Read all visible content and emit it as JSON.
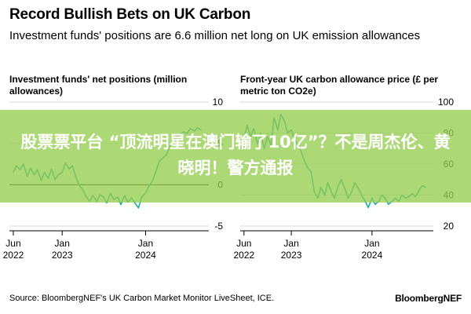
{
  "header": {
    "title": "Record Bullish Bets on UK Carbon",
    "subtitle": "Investment funds' positions are 6.6 million net long on UK emission allowances"
  },
  "footer": {
    "source": "Source: BloombergNEF's UK Carbon Market Monitor LiveSheet, ICE.",
    "logo": "BloombergNEF"
  },
  "overlay": {
    "text": "股票票平台 “顶流明星在澳门输了10亿”？不是周杰伦、黄晓明！警方通报"
  },
  "colors": {
    "series": "#19a8a8",
    "overlay": "#96cd50",
    "grid": "#d9d9d9"
  },
  "chart_data": [
    {
      "type": "line",
      "title": "Investment funds' net positions (million allowances)",
      "y_axis_side": "right",
      "ylim": [
        -5,
        10
      ],
      "yticks": [
        10,
        5,
        0,
        -5
      ],
      "zero_line": true,
      "xlim": [
        "2022-05-15",
        "2024-09-20"
      ],
      "xticks": [
        {
          "x": "2022-06-01",
          "label": [
            "Jun",
            "2022"
          ]
        },
        {
          "x": "2023-01-01",
          "label": [
            "Jan",
            "2023"
          ]
        },
        {
          "x": "2024-01-01",
          "label": [
            "Jan",
            "2024"
          ]
        }
      ],
      "series": [
        {
          "x": [
            "2022-06-01",
            "2022-06-15",
            "2022-07-01",
            "2022-07-15",
            "2022-08-01",
            "2022-08-15",
            "2022-09-01",
            "2022-09-15",
            "2022-10-01",
            "2022-10-15",
            "2022-11-01",
            "2022-11-15",
            "2022-12-01",
            "2022-12-15",
            "2023-01-01",
            "2023-01-15",
            "2023-02-01",
            "2023-02-15",
            "2023-03-01",
            "2023-03-15",
            "2023-04-01",
            "2023-04-15",
            "2023-05-01",
            "2023-05-15",
            "2023-06-01",
            "2023-06-15",
            "2023-07-01",
            "2023-07-15",
            "2023-08-01",
            "2023-08-15",
            "2023-09-01",
            "2023-09-15",
            "2023-10-01",
            "2023-10-15",
            "2023-11-01",
            "2023-11-15",
            "2023-12-01",
            "2023-12-15",
            "2024-01-01",
            "2024-01-15",
            "2024-02-01",
            "2024-02-15",
            "2024-03-01",
            "2024-03-15",
            "2024-04-01",
            "2024-04-15",
            "2024-05-01",
            "2024-05-15",
            "2024-06-01",
            "2024-06-15",
            "2024-07-01",
            "2024-07-15",
            "2024-08-01",
            "2024-08-15",
            "2024-09-01"
          ],
          "values": [
            1.5,
            2.3,
            1.8,
            2.5,
            1.0,
            2.0,
            1.2,
            1.8,
            0.5,
            1.5,
            0.8,
            1.9,
            0.6,
            1.2,
            1.5,
            2.6,
            1.9,
            2.3,
            1.0,
            0.0,
            -0.6,
            -1.4,
            -2.0,
            -1.3,
            -2.0,
            -1.2,
            -1.5,
            -2.2,
            -1.0,
            -1.8,
            -1.5,
            -2.4,
            -1.3,
            -2.1,
            -1.6,
            -2.2,
            -2.8,
            -1.5,
            -1.0,
            -0.2,
            0.5,
            1.6,
            2.8,
            3.2,
            3.6,
            4.6,
            5.2,
            5.8,
            6.1,
            6.4,
            6.2,
            6.8,
            6.5,
            6.9,
            6.6
          ]
        }
      ]
    },
    {
      "type": "line",
      "title": "Front-year UK carbon allowance price (£ per metric ton CO2e)",
      "y_axis_side": "right",
      "ylim": [
        20,
        100
      ],
      "yticks": [
        100,
        80,
        60,
        40,
        20
      ],
      "zero_line": false,
      "xlim": [
        "2022-05-15",
        "2024-09-20"
      ],
      "xticks": [
        {
          "x": "2022-06-01",
          "label": [
            "Jun",
            "2022"
          ]
        },
        {
          "x": "2023-01-01",
          "label": [
            "Jan",
            "2023"
          ]
        },
        {
          "x": "2024-01-01",
          "label": [
            "Jan",
            "2024"
          ]
        }
      ],
      "series": [
        {
          "x": [
            "2022-06-01",
            "2022-06-15",
            "2022-07-01",
            "2022-07-15",
            "2022-08-01",
            "2022-08-15",
            "2022-09-01",
            "2022-09-15",
            "2022-10-01",
            "2022-10-15",
            "2022-11-01",
            "2022-11-15",
            "2022-12-01",
            "2022-12-15",
            "2023-01-01",
            "2023-01-15",
            "2023-02-01",
            "2023-02-15",
            "2023-03-01",
            "2023-03-15",
            "2023-04-01",
            "2023-04-15",
            "2023-05-01",
            "2023-05-15",
            "2023-06-01",
            "2023-06-15",
            "2023-07-01",
            "2023-07-15",
            "2023-08-01",
            "2023-08-15",
            "2023-09-01",
            "2023-09-15",
            "2023-10-01",
            "2023-10-15",
            "2023-11-01",
            "2023-11-15",
            "2023-12-01",
            "2023-12-15",
            "2024-01-01",
            "2024-01-15",
            "2024-02-01",
            "2024-02-15",
            "2024-03-01",
            "2024-03-15",
            "2024-04-01",
            "2024-04-15",
            "2024-05-01",
            "2024-05-15",
            "2024-06-01",
            "2024-06-15",
            "2024-07-01",
            "2024-07-15",
            "2024-08-01",
            "2024-08-15",
            "2024-09-01"
          ],
          "values": [
            76,
            85,
            78,
            83,
            73,
            80,
            70,
            78,
            72,
            90,
            82,
            92,
            88,
            80,
            82,
            76,
            72,
            68,
            62,
            58,
            55,
            42,
            38,
            45,
            40,
            48,
            42,
            38,
            46,
            50,
            44,
            38,
            42,
            48,
            44,
            40,
            36,
            32,
            38,
            34,
            36,
            40,
            38,
            34,
            36,
            38,
            36,
            40,
            38,
            39,
            41,
            39,
            43,
            46,
            45
          ]
        }
      ]
    }
  ]
}
